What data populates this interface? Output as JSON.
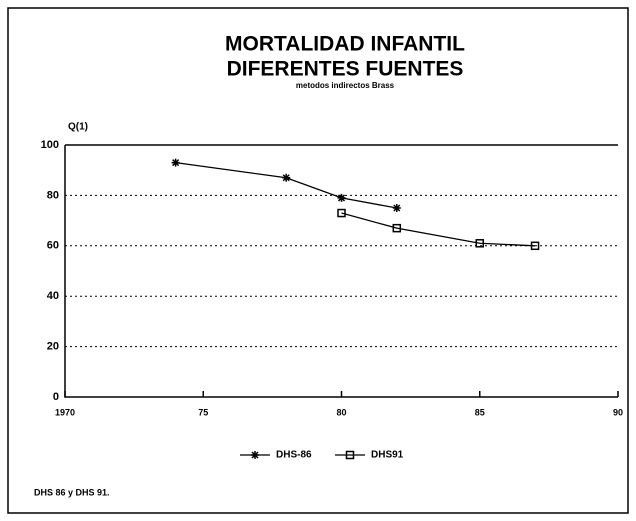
{
  "chart_data": {
    "type": "line",
    "title": "MORTALIDAD INFANTIL",
    "subtitle": "DIFERENTES FUENTES",
    "caption": "metodos indirectos Brass",
    "ylabel": "Q(1)",
    "note": "DHS 86 y DHS 91.",
    "xlim": [
      1970,
      1990
    ],
    "xticks": [
      1970,
      {
        "value": 1975,
        "label": "75"
      },
      {
        "value": 1980,
        "label": "80"
      },
      {
        "value": 1985,
        "label": "85"
      },
      {
        "value": 1990,
        "label": "90"
      }
    ],
    "ylim": [
      0,
      100
    ],
    "yticks": [
      0,
      20,
      40,
      60,
      80,
      100
    ],
    "grid": true,
    "series": [
      {
        "name": "DHS-86",
        "color": "#000000",
        "marker": "asterisk",
        "x": [
          1974,
          1978,
          1980,
          1982
        ],
        "values": [
          93,
          87,
          79,
          75
        ]
      },
      {
        "name": "DHS91",
        "color": "#000000",
        "marker": "square",
        "x": [
          1980,
          1982,
          1985,
          1987
        ],
        "values": [
          73,
          67,
          61,
          60
        ]
      }
    ]
  }
}
